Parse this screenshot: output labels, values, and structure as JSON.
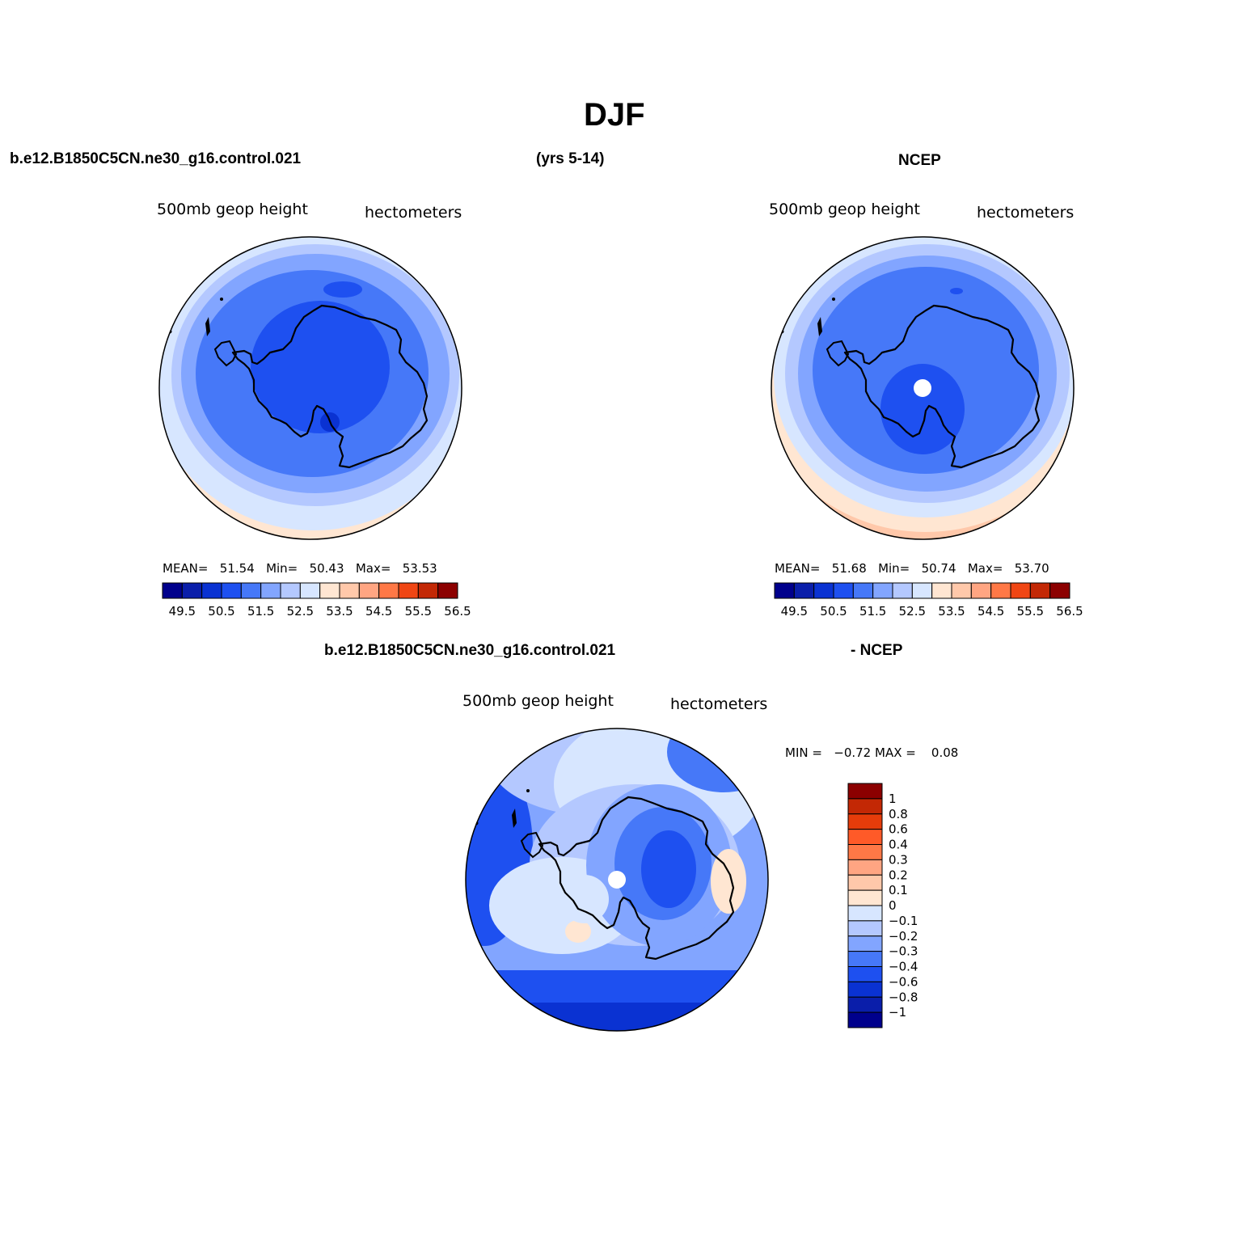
{
  "title": "DJF",
  "header": {
    "left": "b.e12.B1850C5CN.ne30_g16.control.021",
    "center": "(yrs 5-14)",
    "right": "NCEP"
  },
  "diff_header": {
    "left": "b.e12.B1850C5CN.ne30_g16.control.021",
    "right": "- NCEP"
  },
  "panels": [
    {
      "id": "model",
      "variable": "500mb  geop  height",
      "units": "hectometers",
      "stats": {
        "mean_label": "MEAN=",
        "mean": "51.54",
        "min_label": "Min=",
        "min": "50.43",
        "max_label": "Max=",
        "max": "53.53"
      }
    },
    {
      "id": "ncep",
      "variable": "500mb  geop  height",
      "units": "hectometers",
      "stats": {
        "mean_label": "MEAN=",
        "mean": "51.68",
        "min_label": "Min=",
        "min": "50.74",
        "max_label": "Max=",
        "max": "53.70"
      }
    },
    {
      "id": "difference",
      "variable": "500mb  geop  height",
      "units": "hectometers",
      "stats": {
        "min_label": "MIN =",
        "min": "−0.72",
        "max_label": "MAX =",
        "max": "0.08"
      }
    }
  ],
  "colorbar_abs": {
    "colors": [
      "#00008c",
      "#0a1eaa",
      "#0a32d2",
      "#1e50f0",
      "#4678f8",
      "#82a5ff",
      "#b4c8ff",
      "#d7e6ff",
      "#ffe6d2",
      "#ffc8aa",
      "#ffa582",
      "#ff7846",
      "#f04614",
      "#c32805",
      "#8c0000"
    ],
    "labels": [
      "49.5",
      "50.5",
      "51.5",
      "52.5",
      "53.5",
      "54.5",
      "55.5",
      "56.5"
    ]
  },
  "colorbar_diff": {
    "colors_top_to_bottom": [
      "#8c0000",
      "#c32805",
      "#e63c0a",
      "#ff5a28",
      "#ff7846",
      "#ffa582",
      "#ffc8aa",
      "#ffe6d2",
      "#d7e6ff",
      "#b4c8ff",
      "#82a5ff",
      "#4678f8",
      "#1e50f0",
      "#0a32d2",
      "#0a1eaa",
      "#00008c"
    ],
    "labels_top_to_bottom": [
      "1",
      "0.8",
      "0.6",
      "0.4",
      "0.3",
      "0.2",
      "0.1",
      "0",
      "−0.1",
      "−0.2",
      "−0.3",
      "−0.4",
      "−0.6",
      "−0.8",
      "−1"
    ]
  }
}
